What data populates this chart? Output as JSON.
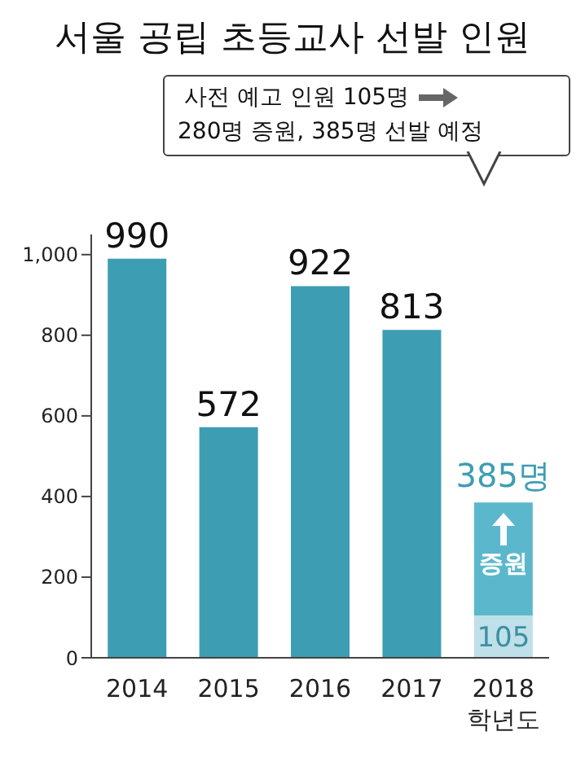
{
  "chart_data": {
    "type": "bar",
    "title": "서울 공립 초등교사 선발 인원",
    "categories": [
      "2014",
      "2015",
      "2016",
      "2017",
      "2018\n학년도"
    ],
    "stacked": true,
    "series": [
      {
        "colors": [
          "#3d9db3",
          "#3d9db3",
          "#3d9db3",
          "#3d9db3",
          "#bfe0e8"
        ],
        "values": [
          990,
          572,
          922,
          813,
          105
        ],
        "value_labels": [
          "990",
          "572",
          "922",
          "813",
          "105"
        ]
      },
      {
        "color": "#5bb8cc",
        "values": [
          null,
          null,
          null,
          null,
          280
        ]
      }
    ],
    "totals": [
      null,
      null,
      null,
      null,
      "385명"
    ],
    "ylim": [
      0,
      1050
    ],
    "yticks": [
      0,
      200,
      400,
      600,
      800,
      {
        "value": 1000,
        "label": "1,000"
      }
    ],
    "annotations": [
      "사전 예고 인원 105명",
      "280명 증원, 385명 선발 예정",
      "증원"
    ]
  }
}
